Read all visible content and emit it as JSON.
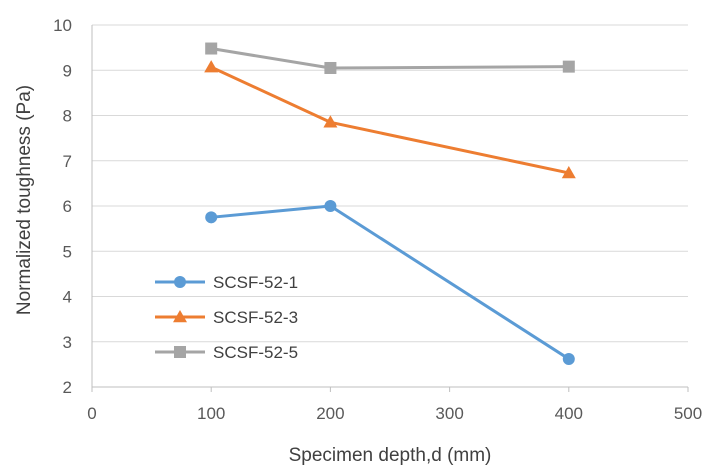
{
  "chart_data": {
    "type": "line",
    "title": "",
    "xlabel": "Specimen depth,d (mm)",
    "ylabel": "Normalized toughness (Pa)",
    "xlim": [
      0,
      500
    ],
    "ylim": [
      2,
      10
    ],
    "xticks": [
      0,
      100,
      200,
      300,
      400,
      500
    ],
    "yticks": [
      2,
      3,
      4,
      5,
      6,
      7,
      8,
      9,
      10
    ],
    "grid": "horizontal",
    "legend_position": "left",
    "series": [
      {
        "name": "SCSF-52-1",
        "color": "#5b9bd5",
        "marker": "circle",
        "x": [
          100,
          200,
          400
        ],
        "y": [
          5.75,
          6.0,
          2.62
        ]
      },
      {
        "name": "SCSF-52-3",
        "color": "#ed7d31",
        "marker": "triangle",
        "x": [
          100,
          200,
          400
        ],
        "y": [
          9.07,
          7.85,
          6.73
        ]
      },
      {
        "name": "SCSF-52-5",
        "color": "#a5a5a5",
        "marker": "square",
        "x": [
          100,
          200,
          400
        ],
        "y": [
          9.48,
          9.05,
          9.08
        ]
      }
    ]
  }
}
